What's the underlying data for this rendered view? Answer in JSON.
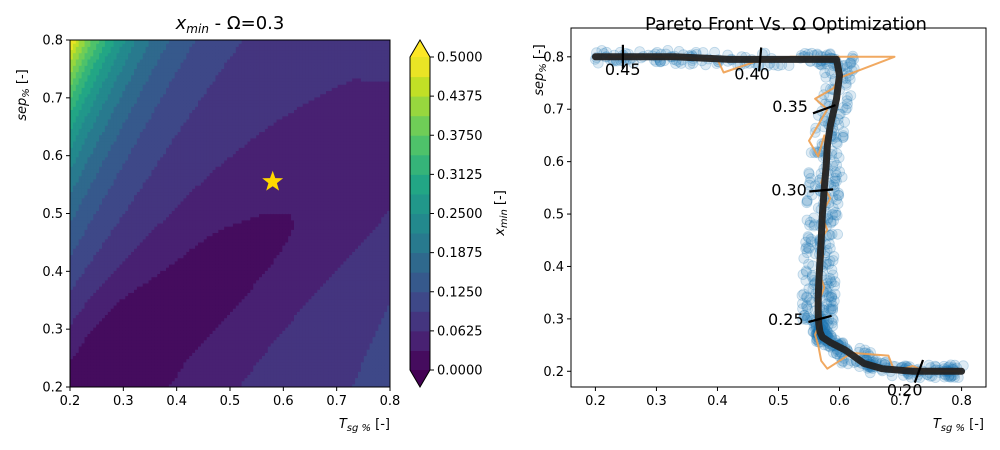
{
  "chart_data": [
    {
      "type": "contour",
      "title_base": "x",
      "title_sub": "min",
      "title_rest": " - Ω=0.3",
      "xlabel_base": "T",
      "xlabel_sub": "sg %",
      "xlabel_unit": " [-]",
      "ylabel_base": "sep",
      "ylabel_sub": "%",
      "ylabel_unit": " [-]",
      "xlim": [
        0.2,
        0.8
      ],
      "ylim": [
        0.2,
        0.8
      ],
      "xticks": [
        "0.2",
        "0.3",
        "0.4",
        "0.5",
        "0.6",
        "0.7",
        "0.8"
      ],
      "yticks": [
        "0.2",
        "0.3",
        "0.4",
        "0.5",
        "0.6",
        "0.7",
        "0.8"
      ],
      "levels": [
        0.0,
        0.03125,
        0.0625,
        0.09375,
        0.125,
        0.15625,
        0.1875,
        0.21875,
        0.25,
        0.28125,
        0.3125,
        0.34375,
        0.375,
        0.40625,
        0.4375,
        0.46875,
        0.5
      ],
      "colormap": "viridis",
      "optimum": {
        "x": 0.58,
        "y": 0.555,
        "marker": "star",
        "color": "#ffd700"
      },
      "colorbar": {
        "ticks": [
          "0.0000",
          "0.0625",
          "0.1250",
          "0.1875",
          "0.2500",
          "0.3125",
          "0.3750",
          "0.4375",
          "0.5000"
        ],
        "label_base": "x",
        "label_sub": "min",
        "label_unit": " [-]",
        "extend": "both"
      }
    },
    {
      "type": "line",
      "title": "Pareto Front Vs. Ω Optimization",
      "xlabel_base": "T",
      "xlabel_sub": "sg %",
      "xlabel_unit": " [-]",
      "ylabel_base": "sep",
      "ylabel_sub": "%",
      "ylabel_unit": " [-]",
      "xlim": [
        0.16,
        0.84
      ],
      "ylim": [
        0.17,
        0.855
      ],
      "xticks": [
        "0.2",
        "0.3",
        "0.4",
        "0.5",
        "0.6",
        "0.7",
        "0.8"
      ],
      "yticks": [
        "0.2",
        "0.3",
        "0.4",
        "0.5",
        "0.6",
        "0.7",
        "0.8"
      ],
      "series": [
        {
          "style": "thick-line",
          "color": "#222222",
          "x": [
            0.2,
            0.25,
            0.33,
            0.42,
            0.55,
            0.595,
            0.6,
            0.595,
            0.585,
            0.58,
            0.578,
            0.575,
            0.572,
            0.57,
            0.568,
            0.566,
            0.565,
            0.565,
            0.566,
            0.568,
            0.572,
            0.585,
            0.61,
            0.64,
            0.67,
            0.72,
            0.77,
            0.8
          ],
          "y": [
            0.8,
            0.8,
            0.8,
            0.795,
            0.795,
            0.795,
            0.765,
            0.72,
            0.67,
            0.63,
            0.59,
            0.55,
            0.5,
            0.45,
            0.41,
            0.37,
            0.34,
            0.31,
            0.29,
            0.275,
            0.265,
            0.255,
            0.24,
            0.215,
            0.205,
            0.2,
            0.2,
            0.2
          ]
        },
        {
          "style": "thin-line",
          "color": "#f0a050",
          "x": [
            0.22,
            0.3,
            0.4,
            0.41,
            0.46,
            0.52,
            0.69,
            0.6,
            0.59,
            0.56,
            0.58,
            0.55,
            0.565,
            0.575,
            0.58,
            0.57,
            0.585,
            0.57,
            0.58,
            0.568,
            0.573,
            0.566,
            0.575,
            0.565,
            0.57,
            0.56,
            0.565,
            0.57,
            0.58,
            0.6,
            0.62,
            0.68,
            0.69,
            0.72,
            0.74,
            0.8
          ],
          "y": [
            0.8,
            0.8,
            0.795,
            0.77,
            0.79,
            0.8,
            0.8,
            0.76,
            0.74,
            0.72,
            0.7,
            0.64,
            0.61,
            0.65,
            0.6,
            0.56,
            0.53,
            0.5,
            0.47,
            0.45,
            0.42,
            0.39,
            0.36,
            0.33,
            0.3,
            0.27,
            0.25,
            0.22,
            0.205,
            0.22,
            0.235,
            0.23,
            0.2,
            0.21,
            0.2,
            0.2
          ]
        }
      ],
      "scatter": {
        "color": "#1f77b4",
        "alpha": 0.15
      },
      "annotations": [
        {
          "label": "0.45",
          "x": 0.245,
          "y": 0.8
        },
        {
          "label": "0.40",
          "x": 0.47,
          "y": 0.795
        },
        {
          "label": "0.35",
          "x": 0.575,
          "y": 0.7
        },
        {
          "label": "0.30",
          "x": 0.57,
          "y": 0.545
        },
        {
          "label": "0.25",
          "x": 0.568,
          "y": 0.3
        },
        {
          "label": "0.20",
          "x": 0.73,
          "y": 0.2
        }
      ]
    }
  ]
}
